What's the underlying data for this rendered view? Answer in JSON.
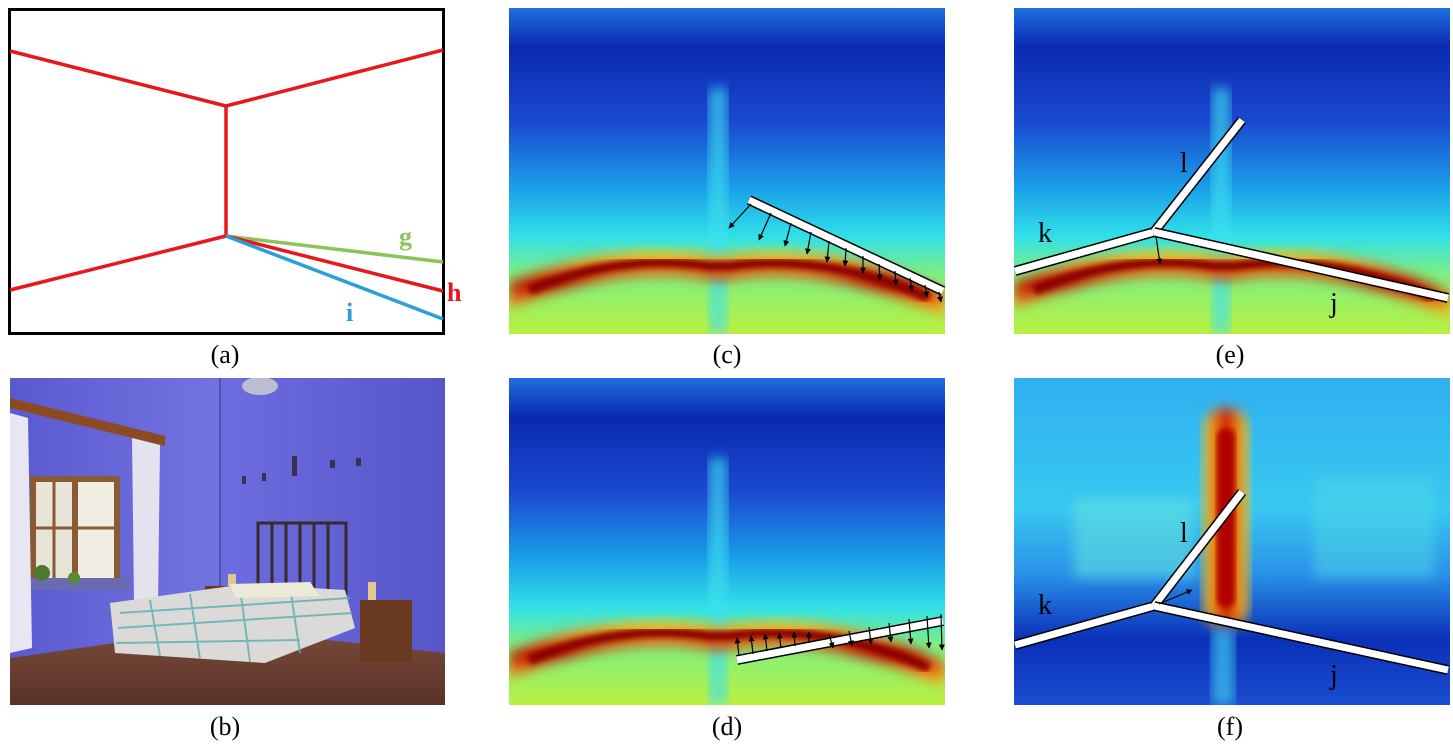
{
  "figure": {
    "captions": {
      "a": "(a)",
      "b": "(b)",
      "c": "(c)",
      "d": "(d)",
      "e": "(e)",
      "f": "(f)"
    },
    "schematic_labels": {
      "g": "g",
      "h": "h",
      "i": "i"
    },
    "colors": {
      "wall_edges": "#e8171d",
      "line_g": "#8cc45a",
      "line_h": "#e8171d",
      "line_i": "#2b9fd9",
      "heatmap_low": "#08209c",
      "heatmap_high": "#9b0000",
      "room_wall": "#6a6ad8"
    },
    "panel_e_labels": {
      "k": "k",
      "l": "l",
      "j": "j"
    },
    "panel_f_labels": {
      "k": "k",
      "l": "l",
      "j": "j"
    }
  }
}
